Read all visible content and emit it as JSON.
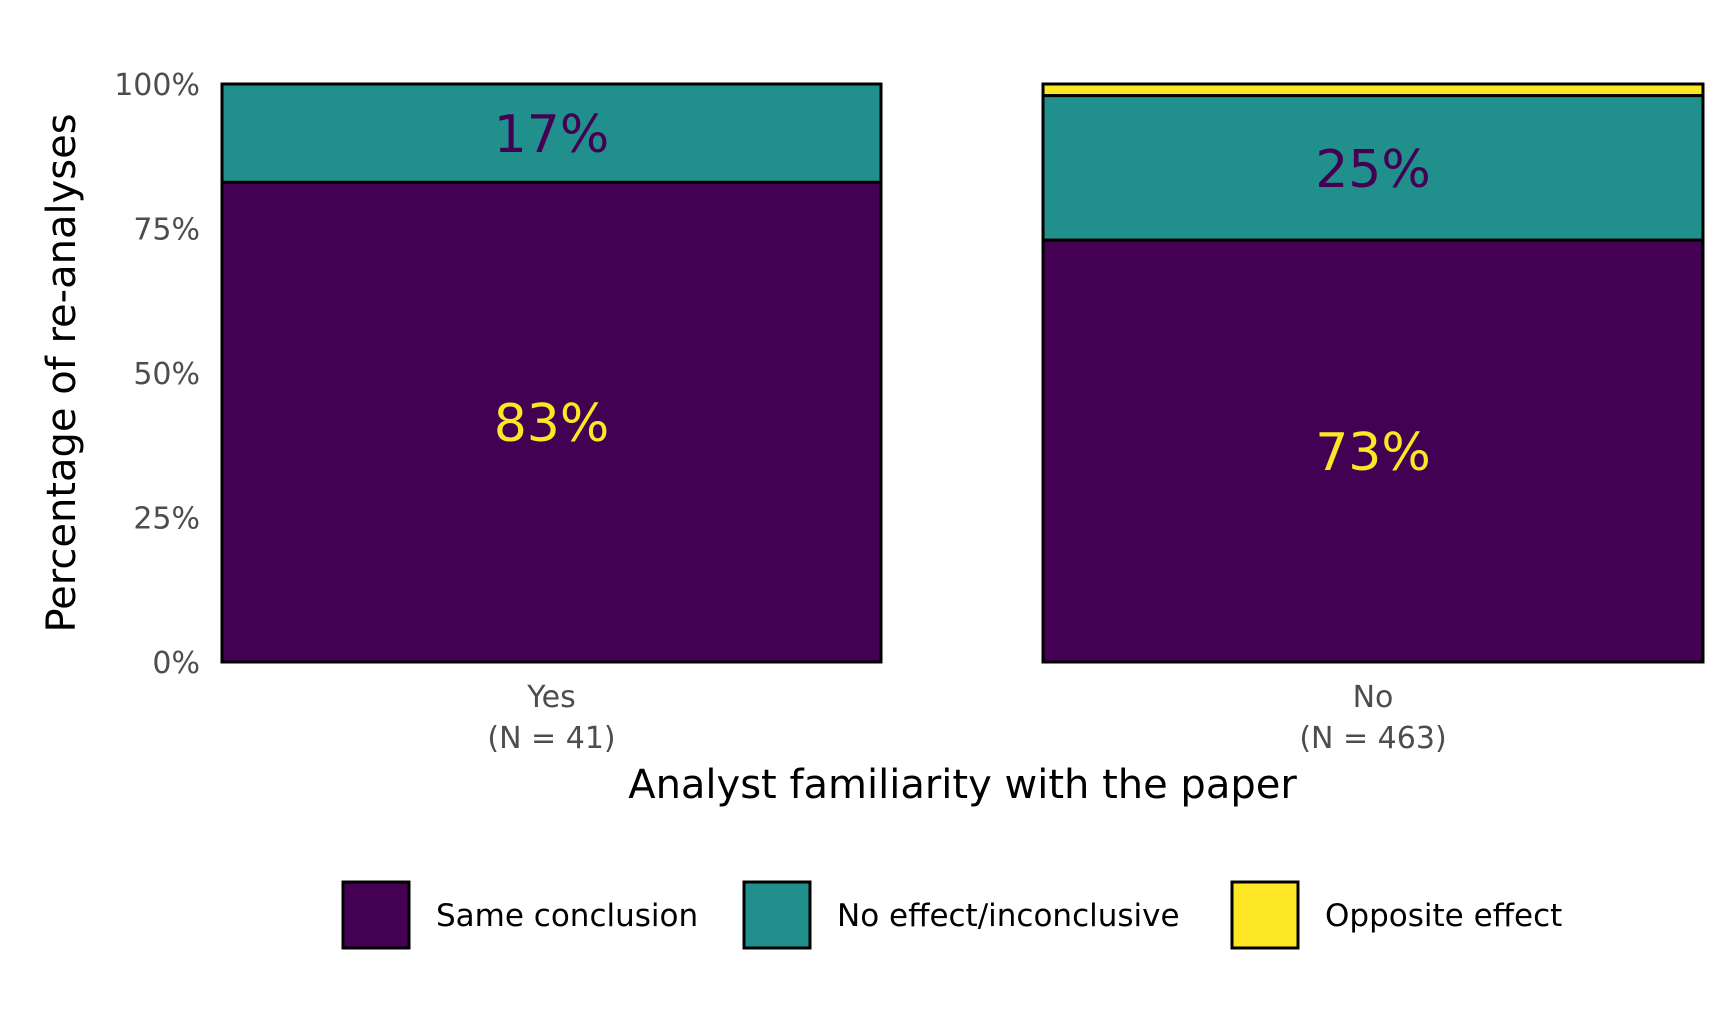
{
  "chart_data": {
    "type": "bar",
    "stacked": true,
    "categories": [
      "Yes",
      "No"
    ],
    "category_counts": [
      "(N = 41)",
      "(N = 463)"
    ],
    "series": [
      {
        "name": "Same conclusion",
        "values": [
          83,
          73
        ],
        "color": "#440154",
        "label_color": "#FDE725"
      },
      {
        "name": "No effect/inconclusive",
        "values": [
          17,
          25
        ],
        "color": "#21908C",
        "label_color": "#440154"
      },
      {
        "name": "Opposite effect",
        "values": [
          0,
          2
        ],
        "color": "#FDE725",
        "label_color": "#440154"
      }
    ],
    "bar_labels": [
      {
        "category": "Yes",
        "series": "Same conclusion",
        "text": "83%"
      },
      {
        "category": "Yes",
        "series": "No effect/inconclusive",
        "text": "17%"
      },
      {
        "category": "No",
        "series": "Same conclusion",
        "text": "73%"
      },
      {
        "category": "No",
        "series": "No effect/inconclusive",
        "text": "25%"
      }
    ],
    "xlabel": "Analyst familiarity with the paper",
    "ylabel": "Percentage of re-analyses",
    "ylim": [
      0,
      100
    ],
    "y_ticks": [
      "0%",
      "25%",
      "50%",
      "75%",
      "100%"
    ],
    "grid": false,
    "legend_position": "bottom"
  }
}
